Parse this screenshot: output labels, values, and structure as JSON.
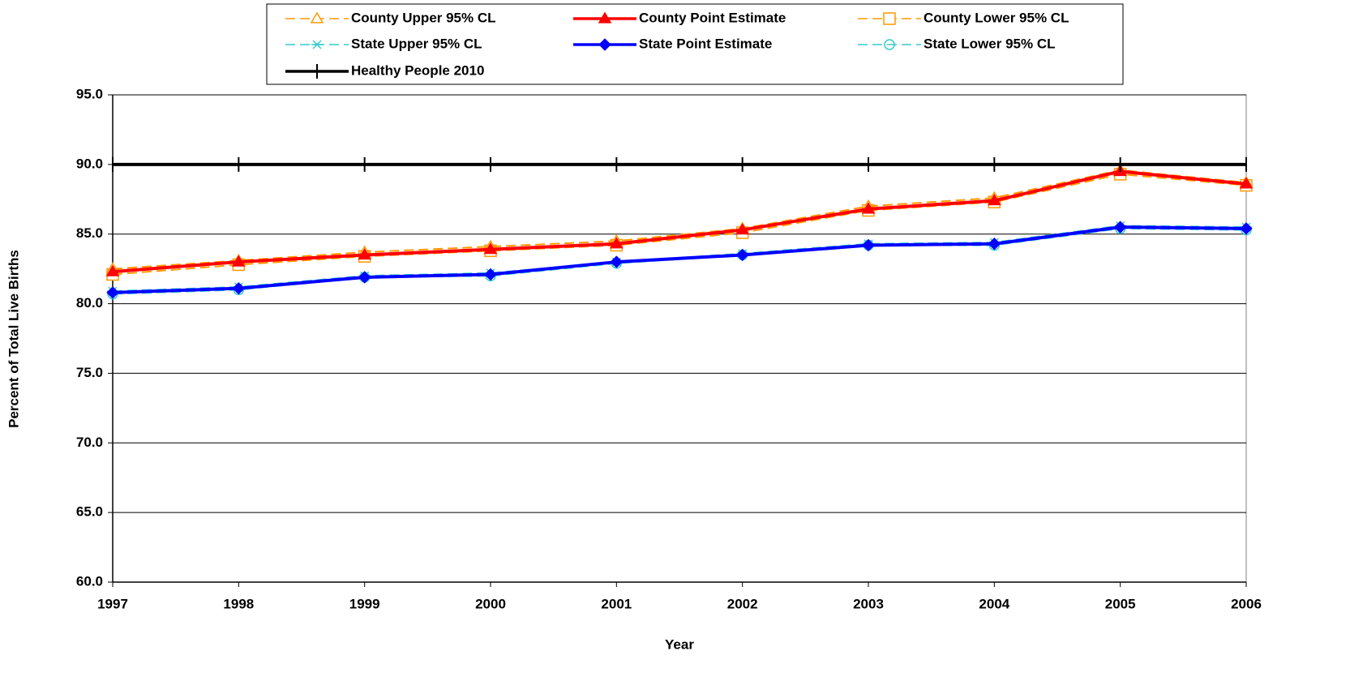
{
  "chart_data": {
    "type": "line",
    "x_label": "Year",
    "y_label": "Percent of Total Live Births",
    "categories": [
      "1997",
      "1998",
      "1999",
      "2000",
      "2001",
      "2002",
      "2003",
      "2004",
      "2005",
      "2006"
    ],
    "ylim": [
      60,
      95
    ],
    "yticks": [
      {
        "value": 60,
        "label": "60.0"
      },
      {
        "value": 65,
        "label": "65.0"
      },
      {
        "value": 70,
        "label": "70.0"
      },
      {
        "value": 75,
        "label": "75.0"
      },
      {
        "value": 80,
        "label": "80.0"
      },
      {
        "value": 85,
        "label": "85.0"
      },
      {
        "value": 90,
        "label": "90.0"
      },
      {
        "value": 95,
        "label": "95.0"
      }
    ],
    "grid": true,
    "legend": "top",
    "series": [
      {
        "name": "County Upper 95% CL",
        "color": "#ff9900",
        "dash": true,
        "marker": "triangle-open",
        "values": [
          82.5,
          83.1,
          83.7,
          84.1,
          84.5,
          85.4,
          87.0,
          87.6,
          89.6,
          88.7
        ]
      },
      {
        "name": "County Point Estimate",
        "color": "#ff0000",
        "dash": false,
        "marker": "triangle",
        "values": [
          82.3,
          83.0,
          83.5,
          83.9,
          84.3,
          85.3,
          86.8,
          87.4,
          89.5,
          88.6
        ]
      },
      {
        "name": "County Lower 95% CL",
        "color": "#ff9900",
        "dash": true,
        "marker": "square-open",
        "values": [
          82.1,
          82.8,
          83.4,
          83.8,
          84.2,
          85.1,
          86.7,
          87.3,
          89.3,
          88.5
        ]
      },
      {
        "name": "State Upper 95% CL",
        "color": "#33cccc",
        "dash": true,
        "marker": "asterisk",
        "values": [
          80.9,
          81.2,
          82.0,
          82.2,
          83.0,
          83.6,
          84.3,
          84.4,
          85.6,
          85.5
        ]
      },
      {
        "name": "State Point Estimate",
        "color": "#0000ff",
        "dash": false,
        "marker": "diamond",
        "values": [
          80.8,
          81.1,
          81.9,
          82.1,
          83.0,
          83.5,
          84.2,
          84.3,
          85.5,
          85.4
        ]
      },
      {
        "name": "State Lower 95% CL",
        "color": "#33cccc",
        "dash": true,
        "marker": "circle-open",
        "values": [
          80.7,
          81.0,
          81.9,
          82.0,
          82.9,
          83.5,
          84.2,
          84.2,
          85.4,
          85.3
        ]
      },
      {
        "name": "Healthy People 2010",
        "color": "#000000",
        "dash": false,
        "marker": "plus",
        "values": [
          90,
          90,
          90,
          90,
          90,
          90,
          90,
          90,
          90,
          90
        ]
      }
    ]
  }
}
